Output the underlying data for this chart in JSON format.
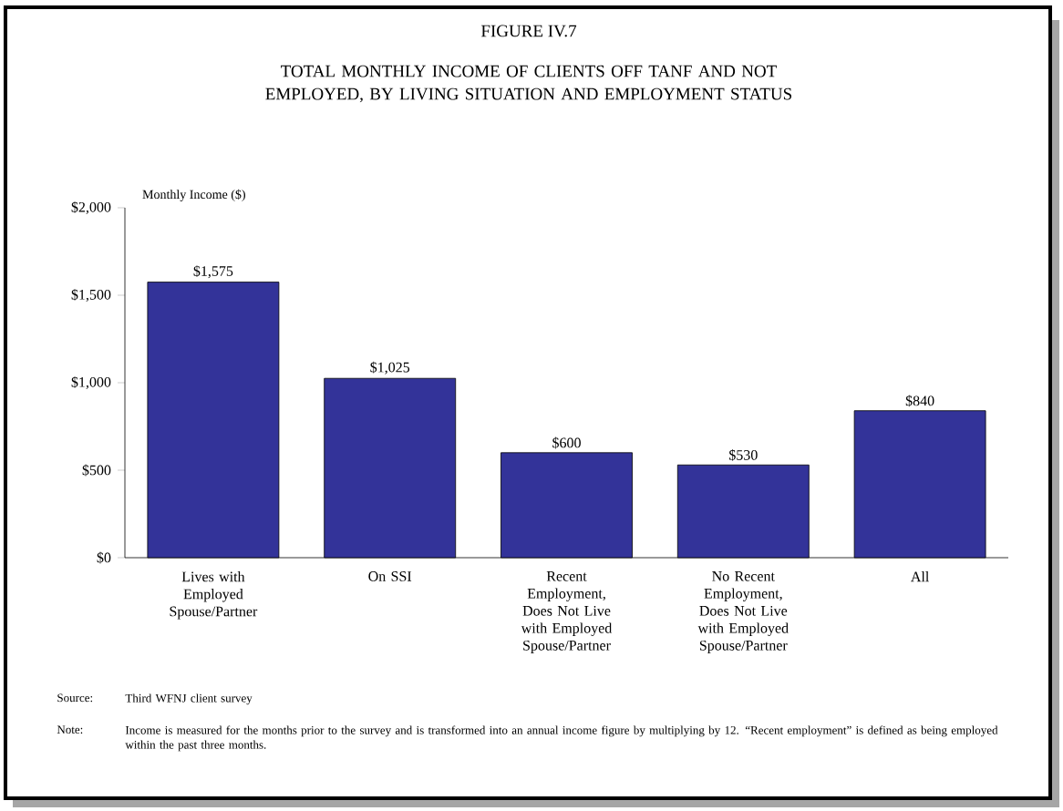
{
  "chart_data": {
    "type": "bar",
    "title": "FIGURE IV.7",
    "subtitle": "TOTAL MONTHLY INCOME OF CLIENTS OFF TANF AND NOT EMPLOYED, BY LIVING SITUATION AND EMPLOYMENT STATUS",
    "ylabel": "Monthly Income ($)",
    "categories": [
      "Lives with Employed Spouse/Partner",
      "On SSI",
      "Recent Employment, Does Not Live with Employed Spouse/Partner",
      "No Recent Employment, Does Not Live with Employed Spouse/Partner",
      "All"
    ],
    "values": [
      1575,
      1025,
      600,
      530,
      840
    ],
    "value_labels": [
      "$1,575",
      "$1,025",
      "$600",
      "$530",
      "$840"
    ],
    "color": "#333399",
    "ylim": [
      0,
      2000
    ],
    "yticks": [
      {
        "value": 0,
        "label": "$0"
      },
      {
        "value": 500,
        "label": "$500"
      },
      {
        "value": 1000,
        "label": "$1,000"
      },
      {
        "value": 1500,
        "label": "$1,500"
      },
      {
        "value": 2000,
        "label": "$2,000"
      }
    ],
    "grid": false,
    "annotations": [
      "Source:",
      "Third WFNJ client survey",
      "Note:",
      "Income is measured for the months prior to the survey and is transformed into an annual income figure by multiplying by 12. “Recent employment” is defined as being employed within the past three months."
    ]
  }
}
